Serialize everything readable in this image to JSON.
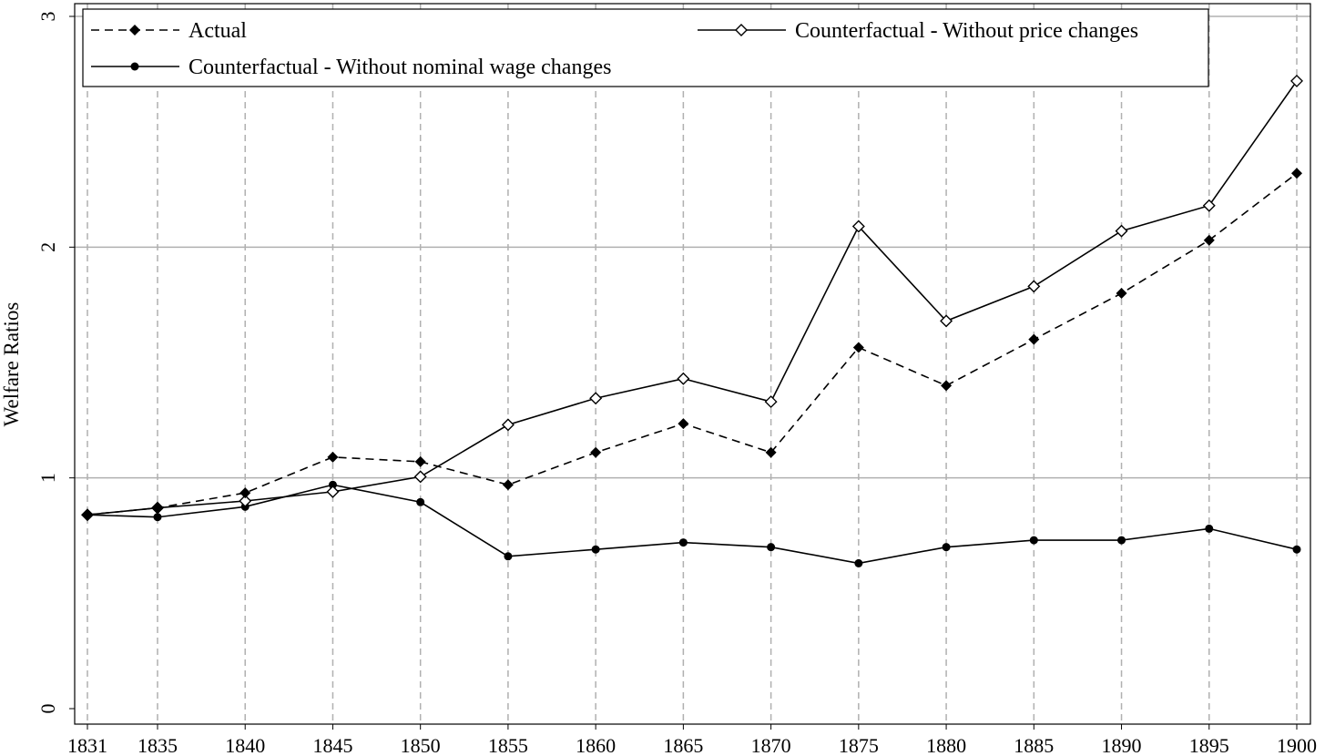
{
  "chart_data": {
    "type": "line",
    "title": "",
    "xlabel": "",
    "ylabel": "Welfare Ratios",
    "x": [
      1831,
      1835,
      1840,
      1845,
      1850,
      1855,
      1860,
      1865,
      1870,
      1875,
      1880,
      1885,
      1890,
      1895,
      1900
    ],
    "x_tick_labels": [
      "1831",
      "1835",
      "1840",
      "1845",
      "1850",
      "1855",
      "1860",
      "1865",
      "1870",
      "1875",
      "1880",
      "1885",
      "1890",
      "1895",
      "1900"
    ],
    "y_ticks": [
      0,
      1,
      2,
      3
    ],
    "y_tick_labels": [
      "0",
      "1",
      "2",
      "3"
    ],
    "ylim": [
      0,
      3
    ],
    "xlim": [
      1831,
      1900
    ],
    "grid": "horizontal solid at y ticks; vertical dashed at x ticks",
    "legend_position": "top",
    "series": [
      {
        "name": "Actual",
        "style": "dashed",
        "marker": "filled-diamond",
        "values": [
          0.84,
          0.87,
          0.935,
          1.09,
          1.07,
          0.97,
          1.11,
          1.235,
          1.11,
          1.565,
          1.4,
          1.6,
          1.8,
          2.03,
          2.32
        ]
      },
      {
        "name": "Counterfactual - Without price changes",
        "style": "solid",
        "marker": "hollow-diamond",
        "values": [
          0.84,
          0.87,
          0.9,
          0.94,
          1.005,
          1.23,
          1.345,
          1.43,
          1.33,
          2.09,
          1.68,
          1.83,
          2.07,
          2.18,
          2.72
        ]
      },
      {
        "name": "Counterfactual - Without nominal wage changes",
        "style": "solid",
        "marker": "filled-circle",
        "values": [
          0.84,
          0.83,
          0.875,
          0.97,
          0.895,
          0.66,
          0.69,
          0.72,
          0.7,
          0.63,
          0.7,
          0.73,
          0.73,
          0.78,
          0.69
        ]
      }
    ]
  }
}
